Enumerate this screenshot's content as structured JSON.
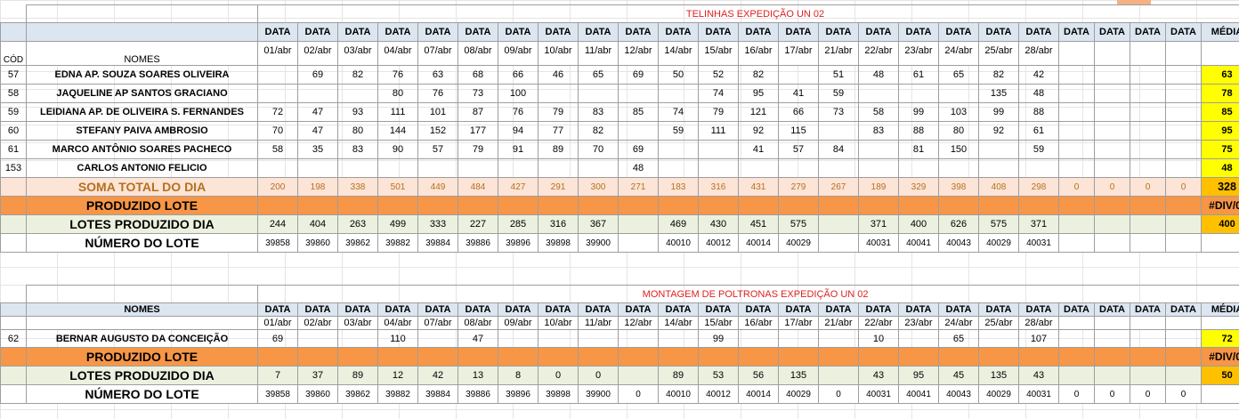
{
  "table1": {
    "title": "TELINHAS EXPEDIÇÃO UN 02",
    "header_cod": "CÓD",
    "header_nomes": "NOMES",
    "header_data": "DATA",
    "header_media": "MÉDIA",
    "dates": [
      "01/abr",
      "02/abr",
      "03/abr",
      "04/abr",
      "07/abr",
      "08/abr",
      "09/abr",
      "10/abr",
      "11/abr",
      "12/abr",
      "14/abr",
      "15/abr",
      "16/abr",
      "17/abr",
      "21/abr",
      "22/abr",
      "23/abr",
      "24/abr",
      "25/abr",
      "28/abr",
      "",
      "",
      "",
      ""
    ],
    "rows": [
      {
        "cod": "57",
        "name": "EDNA AP. SOUZA SOARES OLIVEIRA",
        "values": [
          "",
          "69",
          "82",
          "76",
          "63",
          "68",
          "66",
          "46",
          "65",
          "69",
          "50",
          "52",
          "82",
          "",
          "51",
          "48",
          "61",
          "65",
          "82",
          "42",
          "",
          "",
          "",
          ""
        ],
        "media": "63"
      },
      {
        "cod": "58",
        "name": "JAQUELINE AP SANTOS GRACIANO",
        "values": [
          "",
          "",
          "",
          "80",
          "76",
          "73",
          "100",
          "",
          "",
          "",
          "",
          "74",
          "95",
          "41",
          "59",
          "",
          "",
          "",
          "135",
          "48",
          "",
          "",
          "",
          ""
        ],
        "media": "78"
      },
      {
        "cod": "59",
        "name": "LEIDIANA AP. DE OLIVEIRA S. FERNANDES",
        "values": [
          "72",
          "47",
          "93",
          "111",
          "101",
          "87",
          "76",
          "79",
          "83",
          "85",
          "74",
          "79",
          "121",
          "66",
          "73",
          "58",
          "99",
          "103",
          "99",
          "88",
          "",
          "",
          "",
          ""
        ],
        "media": "85"
      },
      {
        "cod": "60",
        "name": "STEFANY PAIVA AMBROSIO",
        "values": [
          "70",
          "47",
          "80",
          "144",
          "152",
          "177",
          "94",
          "77",
          "82",
          "",
          "59",
          "111",
          "92",
          "115",
          "",
          "83",
          "88",
          "80",
          "92",
          "61",
          "",
          "",
          "",
          ""
        ],
        "media": "95"
      },
      {
        "cod": "61",
        "name": "MARCO ANTÔNIO SOARES PACHECO",
        "values": [
          "58",
          "35",
          "83",
          "90",
          "57",
          "79",
          "91",
          "89",
          "70",
          "69",
          "",
          "",
          "41",
          "57",
          "84",
          "",
          "81",
          "150",
          "",
          "59",
          "",
          "",
          "",
          ""
        ],
        "media": "75"
      },
      {
        "cod": "153",
        "name": "CARLOS ANTONIO FELICIO",
        "values": [
          "",
          "",
          "",
          "",
          "",
          "",
          "",
          "",
          "",
          "48",
          "",
          "",
          "",
          "",
          "",
          "",
          "",
          "",
          "",
          "",
          "",
          "",
          "",
          ""
        ],
        "media": "48"
      }
    ],
    "soma": {
      "label": "SOMA TOTAL DO DIA",
      "values": [
        "200",
        "198",
        "338",
        "501",
        "449",
        "484",
        "427",
        "291",
        "300",
        "271",
        "183",
        "316",
        "431",
        "279",
        "267",
        "189",
        "329",
        "398",
        "408",
        "298",
        "0",
        "0",
        "0",
        "0"
      ],
      "media": "328"
    },
    "produzido": {
      "label": "PRODUZIDO LOTE",
      "media": "#DIV/0!"
    },
    "lotes": {
      "label": "LOTES PRODUZIDO DIA",
      "values": [
        "244",
        "404",
        "263",
        "499",
        "333",
        "227",
        "285",
        "316",
        "367",
        "",
        "469",
        "430",
        "451",
        "575",
        "",
        "371",
        "400",
        "626",
        "575",
        "371",
        "",
        "",
        "",
        ""
      ],
      "media": "400"
    },
    "numero": {
      "label": "NÚMERO DO LOTE",
      "values": [
        "39858",
        "39860",
        "39862",
        "39882",
        "39884",
        "39886",
        "39896",
        "39898",
        "39900",
        "",
        "40010",
        "40012",
        "40014",
        "40029",
        "",
        "40031",
        "40041",
        "40043",
        "40029",
        "40031",
        "",
        "",
        "",
        ""
      ],
      "media": ""
    }
  },
  "table2": {
    "title": "MONTAGEM DE POLTRONAS EXPEDIÇÃO UN 02",
    "header_nomes": "NOMES",
    "header_data": "DATA",
    "header_media": "MÉDIA",
    "dates": [
      "01/abr",
      "02/abr",
      "03/abr",
      "04/abr",
      "07/abr",
      "08/abr",
      "09/abr",
      "10/abr",
      "11/abr",
      "12/abr",
      "14/abr",
      "15/abr",
      "16/abr",
      "17/abr",
      "21/abr",
      "22/abr",
      "23/abr",
      "24/abr",
      "25/abr",
      "28/abr",
      "",
      "",
      "",
      ""
    ],
    "rows": [
      {
        "cod": "62",
        "name": "BERNAR AUGUSTO DA CONCEIÇÃO",
        "values": [
          "69",
          "",
          "",
          "110",
          "",
          "47",
          "",
          "",
          "",
          "",
          "",
          "99",
          "",
          "",
          "",
          "10",
          "",
          "65",
          "",
          "107",
          "",
          "",
          "",
          ""
        ],
        "media": "72"
      }
    ],
    "produzido": {
      "label": "PRODUZIDO LOTE",
      "media": "#DIV/0!"
    },
    "lotes": {
      "label": "LOTES PRODUZIDO DIA",
      "values": [
        "7",
        "37",
        "89",
        "12",
        "42",
        "13",
        "8",
        "0",
        "0",
        "",
        "89",
        "53",
        "56",
        "135",
        "",
        "43",
        "95",
        "45",
        "135",
        "43",
        "",
        "",
        "",
        ""
      ],
      "media": "50"
    },
    "numero": {
      "label": "NÚMERO DO LOTE",
      "values": [
        "39858",
        "39860",
        "39862",
        "39882",
        "39884",
        "39886",
        "39896",
        "39898",
        "39900",
        "0",
        "40010",
        "40012",
        "40014",
        "40029",
        "0",
        "40031",
        "40041",
        "40043",
        "40029",
        "40031",
        "0",
        "0",
        "0",
        "0"
      ],
      "media": ""
    }
  },
  "colors": {
    "header_bg": "#dce6f1",
    "soma_bg": "#fce4d6",
    "soma_text": "#b6701e",
    "produzido_bg": "#f79646",
    "lotes_bg": "#ebf1de",
    "media_yellow": "#ffff00",
    "media_orange": "#ffc000",
    "title_red": "#e02020"
  }
}
